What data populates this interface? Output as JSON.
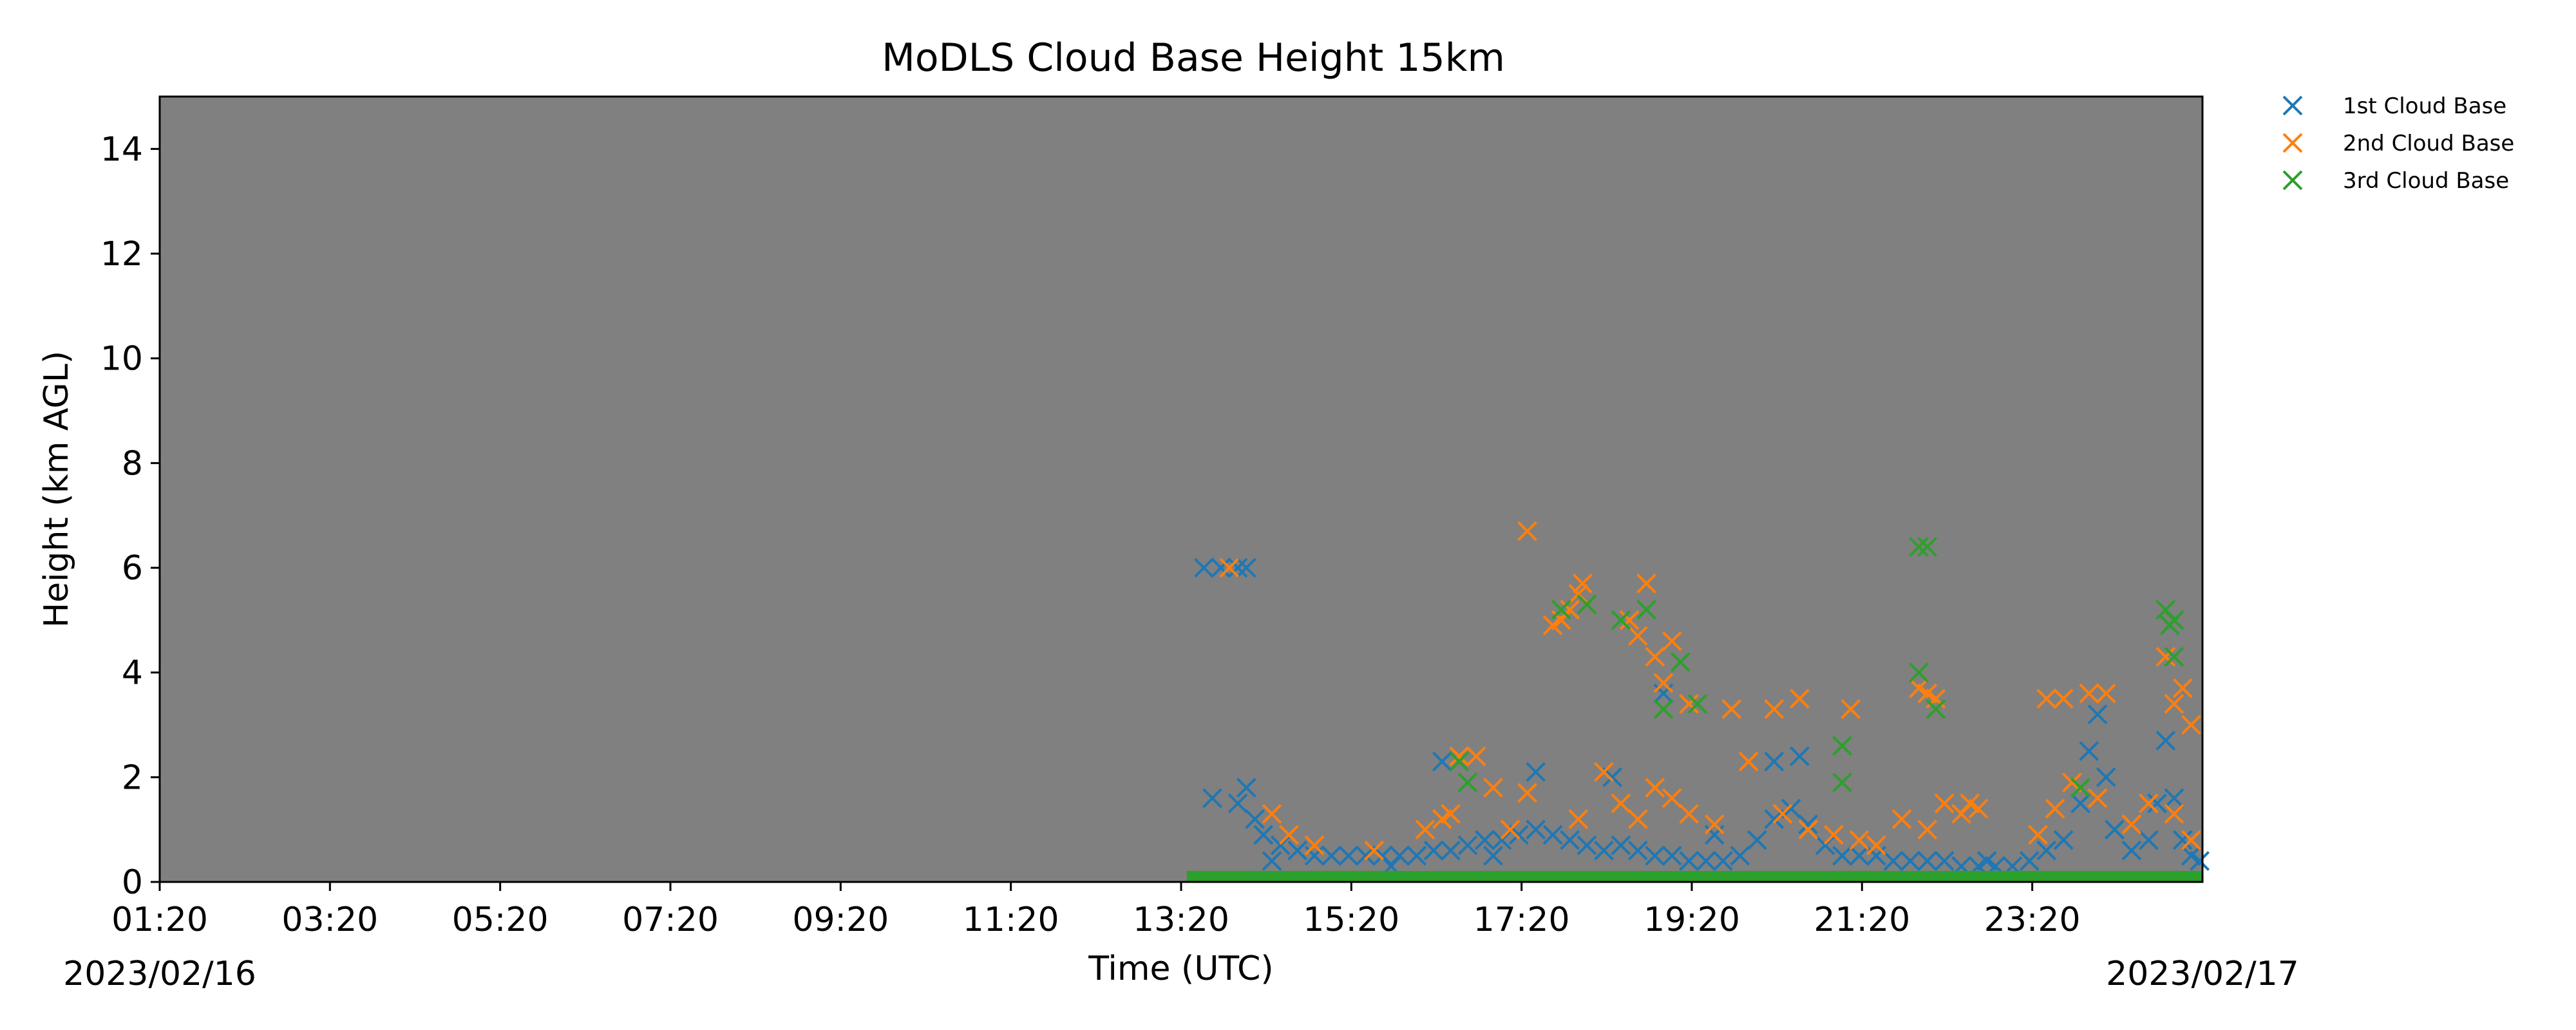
{
  "chart_data": {
    "type": "scatter",
    "title": "MoDLS Cloud Base Height 15km",
    "xlabel": "Time (UTC)",
    "ylabel": "Height (km AGL)",
    "x_unit": "hours UTC from 2023/02/16 00:00",
    "xlim": [
      1.333,
      25.333
    ],
    "ylim": [
      0,
      15
    ],
    "xticks": [
      {
        "value": 1.333,
        "label": "01:20"
      },
      {
        "value": 3.333,
        "label": "03:20"
      },
      {
        "value": 5.333,
        "label": "05:20"
      },
      {
        "value": 7.333,
        "label": "07:20"
      },
      {
        "value": 9.333,
        "label": "09:20"
      },
      {
        "value": 11.333,
        "label": "11:20"
      },
      {
        "value": 13.333,
        "label": "13:20"
      },
      {
        "value": 15.333,
        "label": "15:20"
      },
      {
        "value": 17.333,
        "label": "17:20"
      },
      {
        "value": 19.333,
        "label": "19:20"
      },
      {
        "value": 21.333,
        "label": "21:20"
      },
      {
        "value": 23.333,
        "label": "23:20"
      }
    ],
    "yticks": [
      0,
      2,
      4,
      6,
      8,
      10,
      12,
      14
    ],
    "date_labels": {
      "start": "2023/02/16",
      "end": "2023/02/17"
    },
    "plot_background": "#808080",
    "grid": false,
    "legend_position": "outside-top-right",
    "series": [
      {
        "name": "1st Cloud Base",
        "color": "#1f77b4",
        "marker": "x",
        "points": [
          [
            13.6,
            6.0
          ],
          [
            13.8,
            6.0
          ],
          [
            14.0,
            6.0
          ],
          [
            14.1,
            6.0
          ],
          [
            13.7,
            1.6
          ],
          [
            14.1,
            1.8
          ],
          [
            14.0,
            1.5
          ],
          [
            14.2,
            1.2
          ],
          [
            14.3,
            0.9
          ],
          [
            14.5,
            0.7
          ],
          [
            14.7,
            0.6
          ],
          [
            14.9,
            0.5
          ],
          [
            15.1,
            0.5
          ],
          [
            15.3,
            0.5
          ],
          [
            15.5,
            0.5
          ],
          [
            15.7,
            0.5
          ],
          [
            15.9,
            0.5
          ],
          [
            16.1,
            0.5
          ],
          [
            16.3,
            0.6
          ],
          [
            16.5,
            0.6
          ],
          [
            16.7,
            0.7
          ],
          [
            16.9,
            0.8
          ],
          [
            17.1,
            0.8
          ],
          [
            17.3,
            0.9
          ],
          [
            17.5,
            1.0
          ],
          [
            17.7,
            0.9
          ],
          [
            17.9,
            0.8
          ],
          [
            18.1,
            0.7
          ],
          [
            18.3,
            0.6
          ],
          [
            18.5,
            0.7
          ],
          [
            18.7,
            0.6
          ],
          [
            18.9,
            0.5
          ],
          [
            19.1,
            0.5
          ],
          [
            19.3,
            0.4
          ],
          [
            19.5,
            0.4
          ],
          [
            19.7,
            0.4
          ],
          [
            19.9,
            0.5
          ],
          [
            20.1,
            0.8
          ],
          [
            20.3,
            1.2
          ],
          [
            20.5,
            1.4
          ],
          [
            20.7,
            1.1
          ],
          [
            20.9,
            0.7
          ],
          [
            21.1,
            0.5
          ],
          [
            21.3,
            0.5
          ],
          [
            21.5,
            0.5
          ],
          [
            21.7,
            0.4
          ],
          [
            21.9,
            0.4
          ],
          [
            22.1,
            0.4
          ],
          [
            22.3,
            0.4
          ],
          [
            22.5,
            0.3
          ],
          [
            22.7,
            0.3
          ],
          [
            22.9,
            0.3
          ],
          [
            23.1,
            0.3
          ],
          [
            23.3,
            0.4
          ],
          [
            23.5,
            0.6
          ],
          [
            23.7,
            0.8
          ],
          [
            23.9,
            1.5
          ],
          [
            24.0,
            2.5
          ],
          [
            24.1,
            3.2
          ],
          [
            24.2,
            2.0
          ],
          [
            24.3,
            1.0
          ],
          [
            24.5,
            0.6
          ],
          [
            24.7,
            0.8
          ],
          [
            24.8,
            1.5
          ],
          [
            24.9,
            2.7
          ],
          [
            25.0,
            1.6
          ],
          [
            25.1,
            0.8
          ],
          [
            25.2,
            0.5
          ],
          [
            25.3,
            0.4
          ],
          [
            16.4,
            2.3
          ],
          [
            17.5,
            2.1
          ],
          [
            18.4,
            2.0
          ],
          [
            19.0,
            3.6
          ],
          [
            20.3,
            2.3
          ],
          [
            20.6,
            2.4
          ],
          [
            14.4,
            0.4
          ],
          [
            15.8,
            0.3
          ],
          [
            17.0,
            0.5
          ],
          [
            19.6,
            0.9
          ],
          [
            22.8,
            0.4
          ]
        ]
      },
      {
        "name": "2nd Cloud Base",
        "color": "#ff7f0e",
        "marker": "x",
        "points": [
          [
            13.9,
            6.0
          ],
          [
            17.4,
            6.7
          ],
          [
            17.7,
            4.9
          ],
          [
            17.8,
            5.0
          ],
          [
            17.9,
            5.2
          ],
          [
            18.0,
            5.5
          ],
          [
            18.05,
            5.7
          ],
          [
            18.1,
            5.3
          ],
          [
            18.6,
            5.0
          ],
          [
            18.7,
            4.7
          ],
          [
            18.8,
            5.7
          ],
          [
            18.9,
            4.3
          ],
          [
            19.0,
            3.8
          ],
          [
            19.1,
            4.6
          ],
          [
            19.3,
            3.4
          ],
          [
            19.8,
            3.3
          ],
          [
            20.3,
            3.3
          ],
          [
            20.6,
            3.5
          ],
          [
            21.2,
            3.3
          ],
          [
            22.0,
            3.7
          ],
          [
            22.1,
            3.6
          ],
          [
            22.2,
            3.5
          ],
          [
            23.5,
            3.5
          ],
          [
            23.7,
            3.5
          ],
          [
            24.0,
            3.6
          ],
          [
            24.2,
            3.6
          ],
          [
            24.9,
            4.3
          ],
          [
            25.0,
            3.4
          ],
          [
            25.1,
            3.7
          ],
          [
            25.2,
            3.0
          ],
          [
            14.4,
            1.3
          ],
          [
            14.6,
            0.9
          ],
          [
            14.9,
            0.7
          ],
          [
            15.6,
            0.6
          ],
          [
            16.2,
            1.0
          ],
          [
            16.4,
            1.2
          ],
          [
            16.6,
            2.4
          ],
          [
            16.8,
            2.4
          ],
          [
            17.0,
            1.8
          ],
          [
            17.2,
            1.0
          ],
          [
            17.4,
            1.7
          ],
          [
            18.0,
            1.2
          ],
          [
            18.3,
            2.1
          ],
          [
            18.5,
            1.5
          ],
          [
            18.7,
            1.2
          ],
          [
            18.9,
            1.8
          ],
          [
            19.1,
            1.6
          ],
          [
            19.3,
            1.3
          ],
          [
            19.6,
            1.1
          ],
          [
            20.0,
            2.3
          ],
          [
            20.4,
            1.3
          ],
          [
            20.7,
            1.0
          ],
          [
            21.0,
            0.9
          ],
          [
            21.3,
            0.8
          ],
          [
            21.5,
            0.7
          ],
          [
            21.8,
            1.2
          ],
          [
            22.1,
            1.0
          ],
          [
            22.3,
            1.5
          ],
          [
            22.5,
            1.3
          ],
          [
            22.7,
            1.4
          ],
          [
            23.4,
            0.9
          ],
          [
            23.6,
            1.4
          ],
          [
            23.8,
            1.9
          ],
          [
            24.1,
            1.6
          ],
          [
            24.5,
            1.1
          ],
          [
            24.7,
            1.5
          ],
          [
            25.0,
            1.3
          ],
          [
            25.2,
            0.8
          ],
          [
            22.6,
            1.5
          ],
          [
            16.5,
            1.3
          ]
        ]
      },
      {
        "name": "3rd Cloud Base",
        "color": "#2ca02c",
        "marker": "x",
        "points": [
          [
            17.8,
            5.2
          ],
          [
            18.1,
            5.3
          ],
          [
            18.5,
            5.0
          ],
          [
            18.8,
            5.2
          ],
          [
            19.2,
            4.2
          ],
          [
            19.4,
            3.4
          ],
          [
            21.1,
            2.6
          ],
          [
            21.1,
            1.9
          ],
          [
            22.0,
            6.4
          ],
          [
            22.1,
            6.4
          ],
          [
            22.0,
            4.0
          ],
          [
            22.2,
            3.3
          ],
          [
            23.9,
            1.8
          ],
          [
            24.9,
            5.2
          ],
          [
            25.0,
            5.0
          ],
          [
            24.95,
            4.9
          ],
          [
            25.0,
            4.3
          ],
          [
            16.6,
            2.3
          ],
          [
            16.7,
            1.9
          ],
          [
            19.0,
            3.3
          ]
        ],
        "baseline": {
          "x_from": 13.4,
          "x_to": 25.333,
          "y": 0.1
        }
      }
    ]
  }
}
